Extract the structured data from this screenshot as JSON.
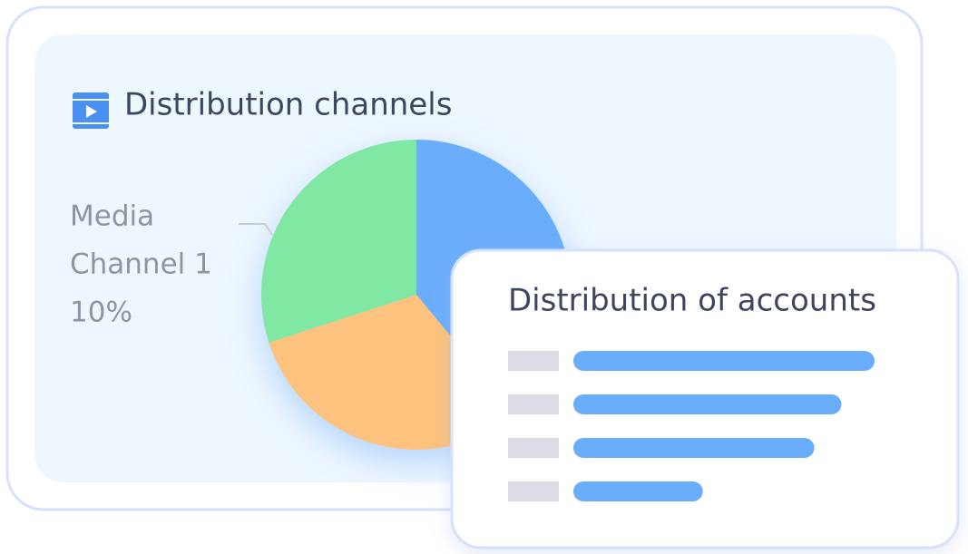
{
  "card": {
    "title": "Distribution channels",
    "pie": {
      "slices": [
        {
          "color": "#6aaefb",
          "value": 39
        },
        {
          "color": "#fdc27d",
          "value": 31
        },
        {
          "color": "#80e8a2",
          "value": 30
        }
      ],
      "annotation": [
        "Media",
        "Channel 1",
        "10%"
      ]
    }
  },
  "popup": {
    "title": "Distribution of accounts",
    "bars": {
      "color": "#6aaefb",
      "xlim": [
        0,
        100
      ],
      "values": [
        100,
        89,
        80,
        43
      ]
    }
  }
}
